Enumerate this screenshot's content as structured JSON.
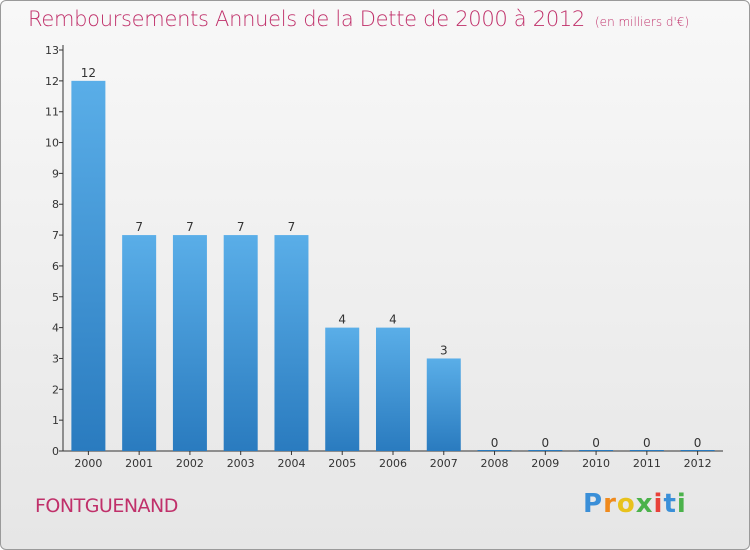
{
  "title": "Remboursements Annuels de la Dette de 2000 à 2012",
  "unit": "(en milliers d'€)",
  "commune": "FONTGUENAND",
  "logo": {
    "text": "Proxiti"
  },
  "colors": {
    "title": "#c0306a",
    "bar_top": "#5aaee8",
    "bar_bottom": "#2a7bbf",
    "axis": "#333333"
  },
  "chart_data": {
    "type": "bar",
    "title": "Remboursements Annuels de la Dette de 2000 à 2012",
    "xlabel": "",
    "ylabel": "",
    "categories": [
      "2000",
      "2001",
      "2002",
      "2003",
      "2004",
      "2005",
      "2006",
      "2007",
      "2008",
      "2009",
      "2010",
      "2011",
      "2012"
    ],
    "values": [
      12,
      7,
      7,
      7,
      7,
      4,
      4,
      3,
      0,
      0,
      0,
      0,
      0
    ],
    "data_labels": [
      "12",
      "7",
      "7",
      "7",
      "7",
      "4",
      "4",
      "3",
      "0",
      "0",
      "0",
      "0",
      "0"
    ],
    "ylim": [
      0,
      13
    ],
    "yticks": [
      0,
      1,
      2,
      3,
      4,
      5,
      6,
      7,
      8,
      9,
      10,
      11,
      12,
      13
    ],
    "grid": false,
    "legend": "none"
  }
}
